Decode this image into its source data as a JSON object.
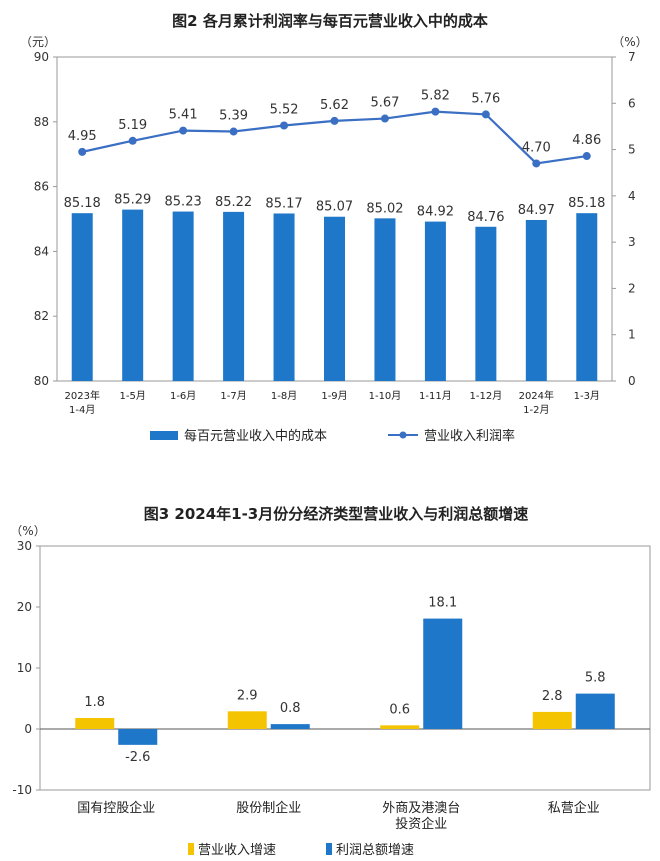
{
  "chart_data": [
    {
      "type": "bar+line",
      "title": "图2 各月累计利润率与每百元营业收入中的成本",
      "left_unit": "（元）",
      "right_unit": "（%）",
      "categories": [
        [
          "2023年",
          "1-4月"
        ],
        [
          "1-5月"
        ],
        [
          "1-6月"
        ],
        [
          "1-7月"
        ],
        [
          "1-8月"
        ],
        [
          "1-9月"
        ],
        [
          "1-10月"
        ],
        [
          "1-11月"
        ],
        [
          "1-12月"
        ],
        [
          "2024年",
          "1-2月"
        ],
        [
          "1-3月"
        ]
      ],
      "left_ylim": [
        80,
        90
      ],
      "left_ticks": [
        "80",
        "82",
        "84",
        "86",
        "88",
        "90"
      ],
      "right_ylim": [
        0,
        7
      ],
      "right_ticks": [
        "0",
        "1",
        "2",
        "3",
        "4",
        "5",
        "6",
        "7"
      ],
      "series": [
        {
          "name": "每百元营业收入中的成本",
          "kind": "bar",
          "axis": "left",
          "color": "#1f77c9",
          "values": [
            85.18,
            85.29,
            85.23,
            85.22,
            85.17,
            85.07,
            85.02,
            84.92,
            84.76,
            84.97,
            85.18
          ],
          "labels": [
            "85.18",
            "85.29",
            "85.23",
            "85.22",
            "85.17",
            "85.07",
            "85.02",
            "84.92",
            "84.76",
            "84.97",
            "85.18"
          ]
        },
        {
          "name": "营业收入利润率",
          "kind": "line",
          "axis": "right",
          "color": "#3a6fc4",
          "values": [
            4.95,
            5.19,
            5.41,
            5.39,
            5.52,
            5.62,
            5.67,
            5.82,
            5.76,
            4.7,
            4.86
          ],
          "labels": [
            "4.95",
            "5.19",
            "5.41",
            "5.39",
            "5.52",
            "5.62",
            "5.67",
            "5.82",
            "5.76",
            "4.70",
            "4.86"
          ]
        }
      ]
    },
    {
      "type": "bar",
      "title": "图3 2024年1-3月份分经济类型营业收入与利润总额增速",
      "unit": "（%）",
      "categories": [
        [
          "国有控股企业"
        ],
        [
          "股份制企业"
        ],
        [
          "外商及港澳台",
          "投资企业"
        ],
        [
          "私营企业"
        ]
      ],
      "ylim": [
        -10,
        30
      ],
      "ticks": [
        "-10",
        "0",
        "10",
        "20",
        "30"
      ],
      "series": [
        {
          "name": "营业收入增速",
          "color": "#f5c400",
          "values": [
            1.8,
            2.9,
            0.6,
            2.8
          ],
          "labels": [
            "1.8",
            "2.9",
            "0.6",
            "2.8"
          ]
        },
        {
          "name": "利润总额增速",
          "color": "#1f77c9",
          "values": [
            -2.6,
            0.8,
            18.1,
            5.8
          ],
          "labels": [
            "-2.6",
            "0.8",
            "18.1",
            "5.8"
          ]
        }
      ]
    }
  ]
}
